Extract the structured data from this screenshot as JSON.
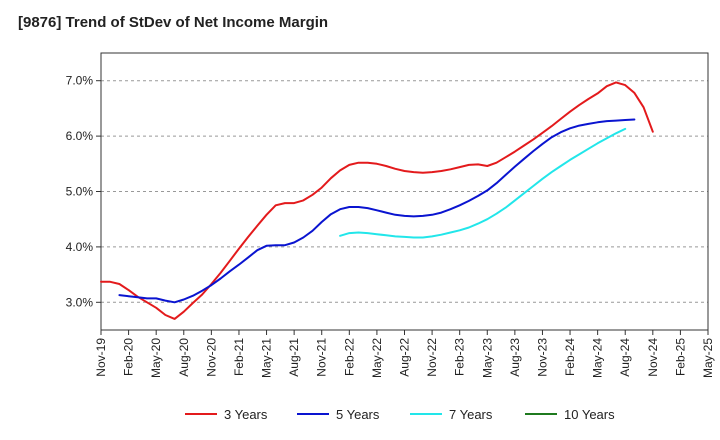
{
  "chart_data": {
    "type": "line",
    "title": "[9876]  Trend of StDev of Net Income Margin",
    "y_ticks": [
      "3.0%",
      "4.0%",
      "5.0%",
      "6.0%",
      "7.0%"
    ],
    "y_tick_values": [
      3.0,
      4.0,
      5.0,
      6.0,
      7.0
    ],
    "x_ticks": [
      "Nov-19",
      "Feb-20",
      "May-20",
      "Aug-20",
      "Nov-20",
      "Feb-21",
      "May-21",
      "Aug-21",
      "Nov-21",
      "Feb-22",
      "May-22",
      "Aug-22",
      "Nov-22",
      "Feb-23",
      "May-23",
      "Aug-23",
      "Nov-23",
      "Feb-24",
      "May-24",
      "Aug-24",
      "Nov-24",
      "Feb-25",
      "May-25"
    ],
    "x_tick_index": [
      0,
      3,
      6,
      9,
      12,
      15,
      18,
      21,
      24,
      27,
      30,
      33,
      36,
      39,
      42,
      45,
      48,
      51,
      54,
      57,
      60,
      63,
      66
    ],
    "ylim": [
      2.5,
      7.5
    ],
    "xlim": [
      0,
      66
    ],
    "grid": "horizontal dashed",
    "legend_position": "bottom",
    "series": [
      {
        "name": "3 Years",
        "color": "#e31a1c",
        "start_index": 0,
        "values": [
          3.37,
          3.37,
          3.33,
          3.22,
          3.1,
          3.0,
          2.9,
          2.77,
          2.7,
          2.83,
          2.99,
          3.14,
          3.33,
          3.53,
          3.75,
          3.97,
          4.18,
          4.38,
          4.58,
          4.75,
          4.79,
          4.79,
          4.84,
          4.94,
          5.07,
          5.24,
          5.38,
          5.48,
          5.52,
          5.52,
          5.5,
          5.46,
          5.41,
          5.37,
          5.35,
          5.34,
          5.35,
          5.37,
          5.4,
          5.44,
          5.48,
          5.49,
          5.46,
          5.52,
          5.62,
          5.72,
          5.83,
          5.94,
          6.06,
          6.18,
          6.31,
          6.44,
          6.56,
          6.67,
          6.77,
          6.9,
          6.97,
          6.92,
          6.78,
          6.52,
          6.08
        ]
      },
      {
        "name": "5 Years",
        "color": "#0a14d0",
        "start_index": 2,
        "values": [
          3.13,
          3.11,
          3.09,
          3.07,
          3.07,
          3.03,
          3.0,
          3.05,
          3.12,
          3.21,
          3.31,
          3.43,
          3.56,
          3.68,
          3.81,
          3.94,
          4.02,
          4.03,
          4.03,
          4.08,
          4.17,
          4.29,
          4.45,
          4.59,
          4.68,
          4.72,
          4.72,
          4.7,
          4.66,
          4.62,
          4.58,
          4.56,
          4.55,
          4.56,
          4.58,
          4.62,
          4.68,
          4.75,
          4.83,
          4.92,
          5.02,
          5.15,
          5.3,
          5.45,
          5.59,
          5.73,
          5.86,
          5.98,
          6.07,
          6.14,
          6.19,
          6.22,
          6.25,
          6.27,
          6.28,
          6.29,
          6.3
        ]
      },
      {
        "name": "7 Years",
        "color": "#22e6ea",
        "start_index": 26,
        "values": [
          4.2,
          4.25,
          4.26,
          4.25,
          4.23,
          4.21,
          4.19,
          4.18,
          4.17,
          4.17,
          4.19,
          4.22,
          4.26,
          4.3,
          4.35,
          4.42,
          4.5,
          4.6,
          4.71,
          4.84,
          4.97,
          5.1,
          5.23,
          5.35,
          5.46,
          5.57,
          5.67,
          5.77,
          5.87,
          5.96,
          6.05,
          6.13
        ]
      },
      {
        "name": "10 Years",
        "color": "#1f7a1f",
        "start_index": 0,
        "values": []
      }
    ]
  }
}
